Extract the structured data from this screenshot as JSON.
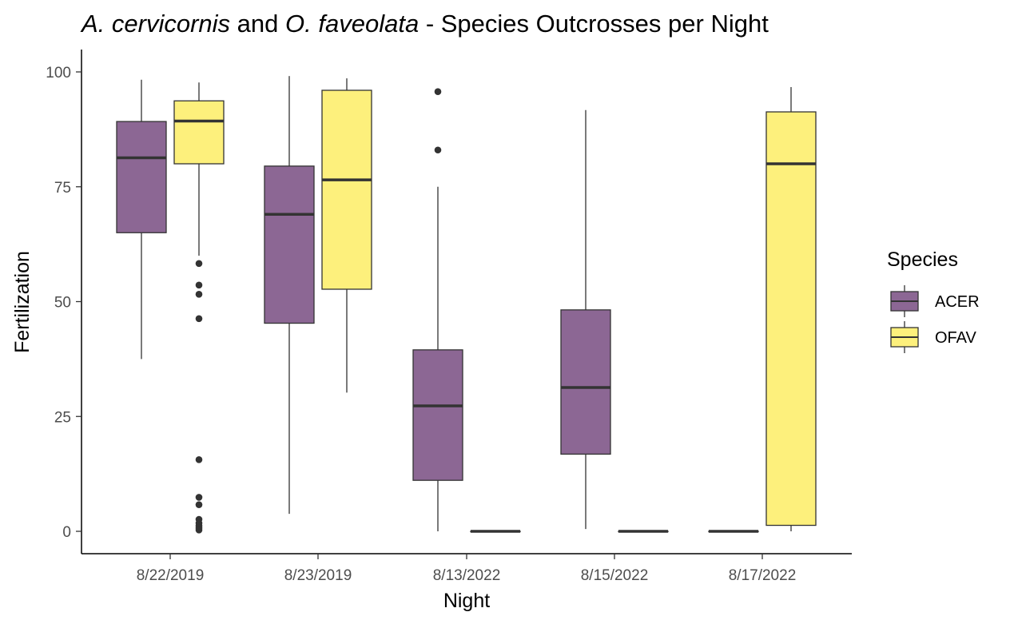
{
  "chart_data": {
    "type": "boxplot",
    "title": {
      "species1": "A. cervicornis",
      "conj": "and",
      "species2": "O. faveolata",
      "rest": "- Species Outcrosses per Night"
    },
    "xlabel": "Night",
    "ylabel": "Fertilization",
    "ylim": [
      0,
      100
    ],
    "yticks": [
      0,
      25,
      50,
      75,
      100
    ],
    "categories": [
      "8/22/2019",
      "8/23/2019",
      "8/13/2022",
      "8/15/2022",
      "8/17/2022"
    ],
    "legend": {
      "title": "Species",
      "position": "right",
      "entries": [
        {
          "name": "ACER",
          "color": "#8c6794"
        },
        {
          "name": "OFAV",
          "color": "#fdf07c"
        }
      ]
    },
    "series": [
      {
        "name": "ACER",
        "color": "#8c6794",
        "boxes": [
          {
            "category": "8/22/2019",
            "min": 37.5,
            "q1": 65,
            "median": 81.3,
            "q3": 89.2,
            "max": 98.3,
            "outliers": []
          },
          {
            "category": "8/23/2019",
            "min": 3.8,
            "q1": 45.3,
            "median": 69,
            "q3": 79.5,
            "max": 99.1,
            "outliers": []
          },
          {
            "category": "8/13/2022",
            "min": 0,
            "q1": 11.1,
            "median": 27.3,
            "q3": 39.5,
            "max": 75,
            "outliers": [
              83,
              95.7
            ]
          },
          {
            "category": "8/15/2022",
            "min": 0.5,
            "q1": 16.8,
            "median": 31.3,
            "q3": 48.2,
            "max": 91.7,
            "outliers": []
          },
          {
            "category": "8/17/2022",
            "min": 0,
            "q1": 0,
            "median": 0,
            "q3": 0,
            "max": 0,
            "outliers": []
          }
        ]
      },
      {
        "name": "OFAV",
        "color": "#fdf07c",
        "boxes": [
          {
            "category": "8/22/2019",
            "min": 60,
            "q1": 80,
            "median": 89.3,
            "q3": 93.7,
            "max": 97.7,
            "outliers": [
              58.3,
              53.6,
              51.6,
              46.3,
              15.6,
              7.4,
              5.8,
              2.6,
              1.8,
              1.2,
              0.7,
              0.3
            ]
          },
          {
            "category": "8/23/2019",
            "min": 30.2,
            "q1": 52.7,
            "median": 76.5,
            "q3": 96,
            "max": 98.6,
            "outliers": []
          },
          {
            "category": "8/13/2022",
            "min": 0,
            "q1": 0,
            "median": 0,
            "q3": 0,
            "max": 0,
            "outliers": []
          },
          {
            "category": "8/15/2022",
            "min": 0,
            "q1": 0,
            "median": 0,
            "q3": 0,
            "max": 0,
            "outliers": []
          },
          {
            "category": "8/17/2022",
            "min": 0,
            "q1": 1.3,
            "median": 80,
            "q3": 91.3,
            "max": 96.7,
            "outliers": []
          }
        ]
      }
    ],
    "grid": false
  }
}
